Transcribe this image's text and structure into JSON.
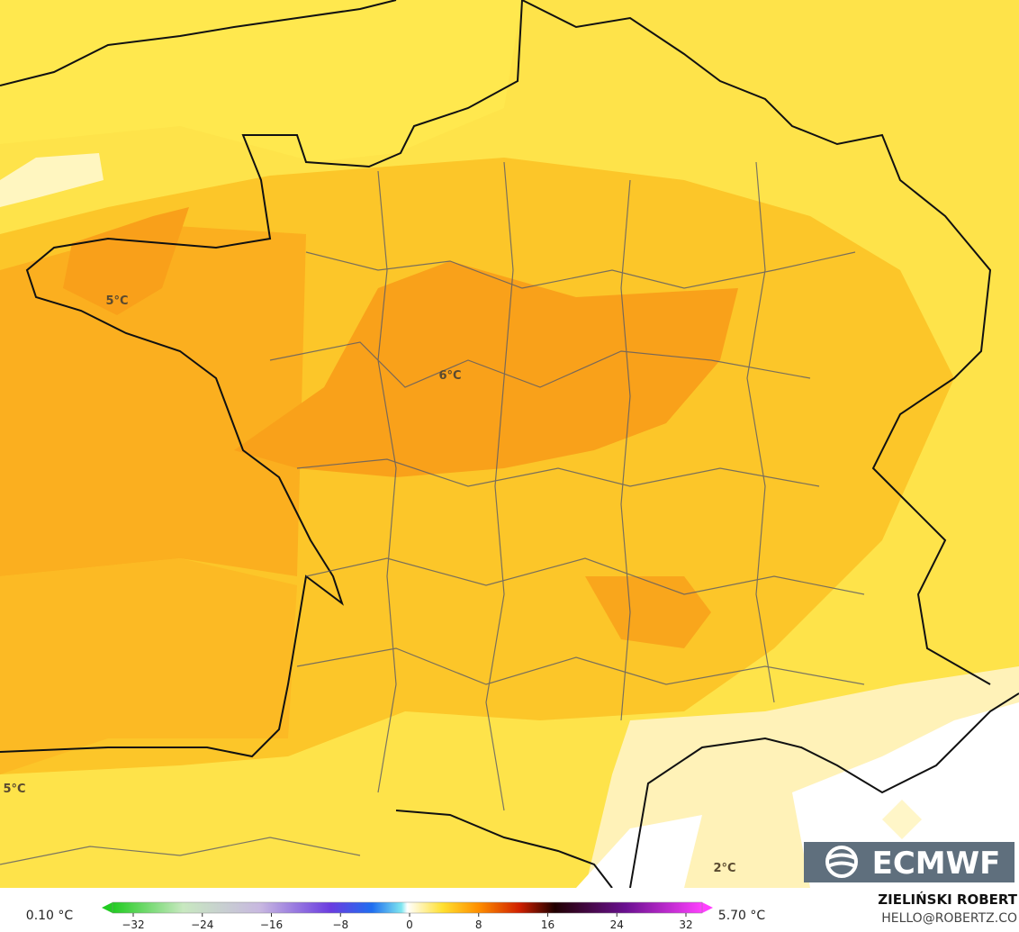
{
  "map": {
    "labels": [
      "5°C",
      "6°C",
      "5°C",
      "2°C"
    ],
    "logo": "ECMWF"
  },
  "legend": {
    "min_label": "0.10 °C",
    "max_label": "5.70 °C",
    "ticks": [
      "−32",
      "−24",
      "−16",
      "−8",
      "0",
      "8",
      "16",
      "24",
      "32"
    ]
  },
  "credit": {
    "name": "ZIELIŃSKI ROBERT",
    "email": "HELLO@ROBERTZ.CO"
  }
}
